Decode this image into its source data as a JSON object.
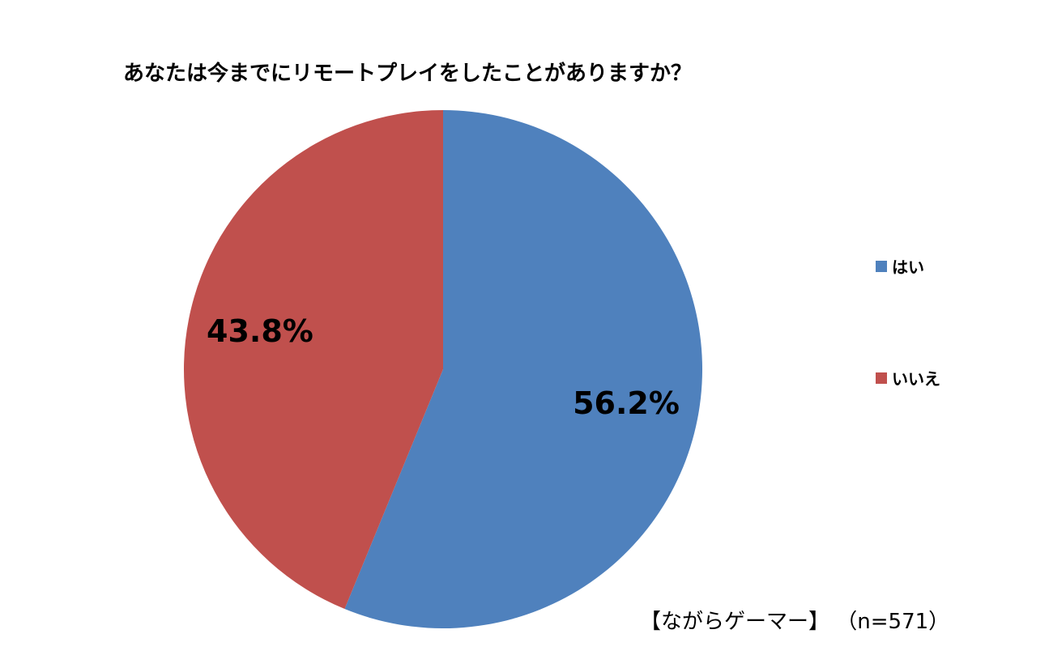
{
  "chart_data": {
    "type": "pie",
    "title": "あなたは今までにリモートプレイをしたことがありますか？",
    "categories": [
      "はい",
      "いいえ"
    ],
    "values": [
      56.2,
      43.8
    ],
    "labels": [
      "56.2%",
      "43.8%"
    ],
    "colors": [
      "#4F81BD",
      "#C0504D"
    ],
    "legend_position": "right",
    "start_angle": "12 o'clock, clockwise"
  },
  "source_note": "【ながらゲーマー】 （n=571）"
}
